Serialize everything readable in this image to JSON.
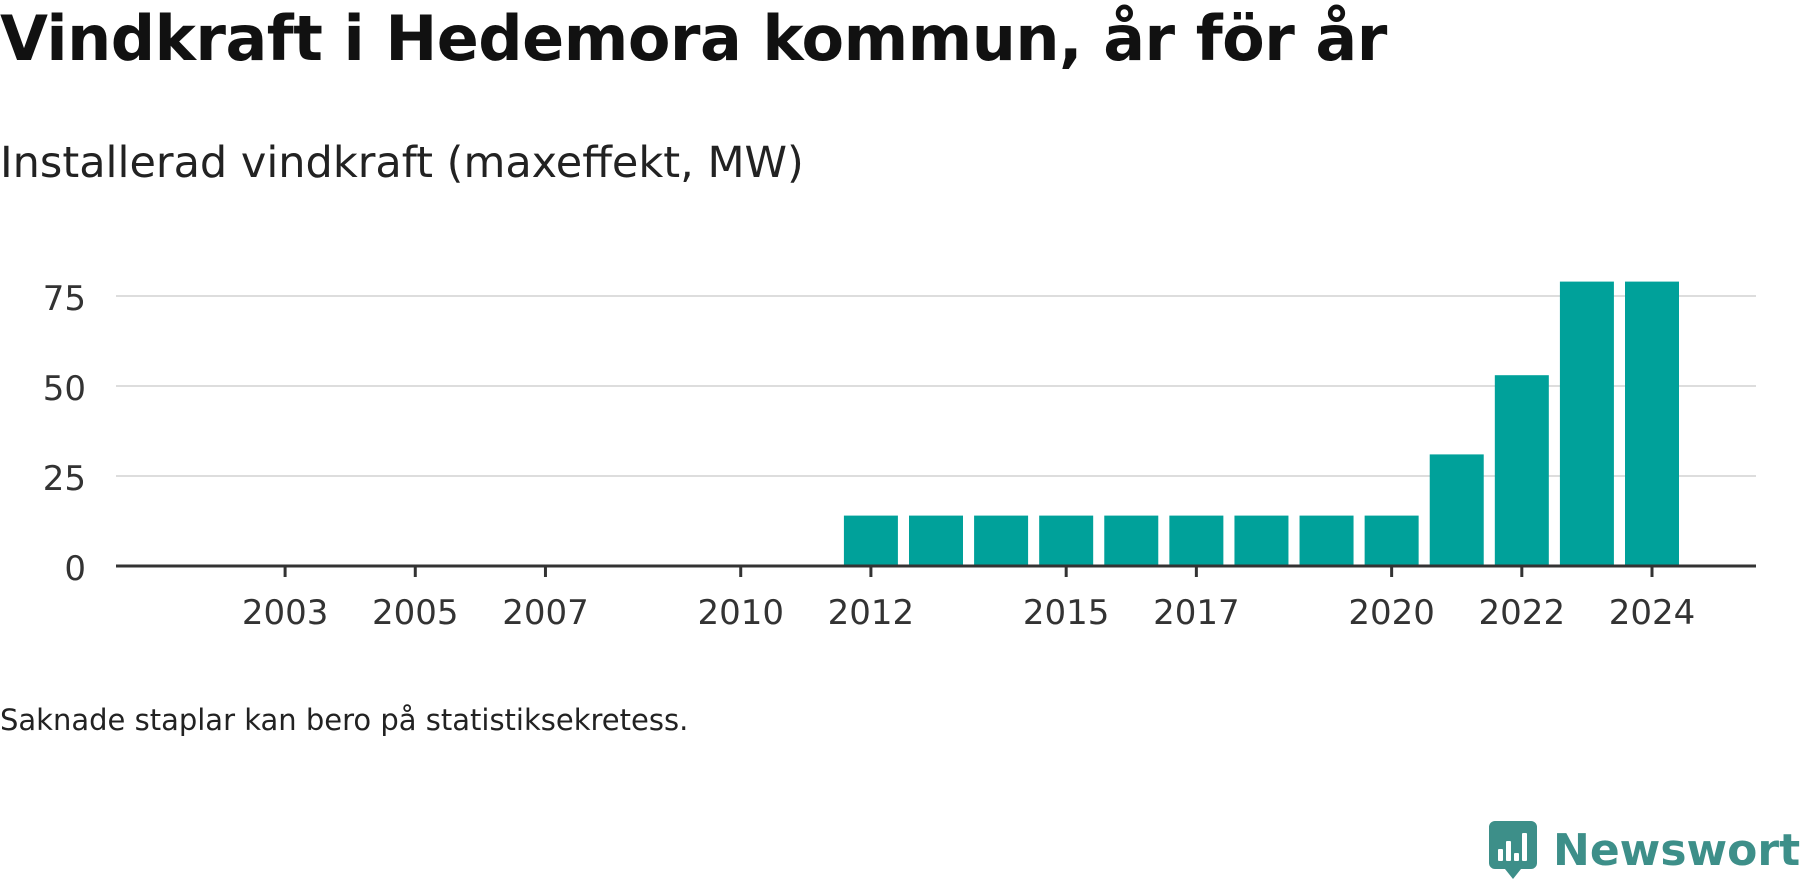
{
  "title": "Vindkraft i Hedemora kommun, år för år",
  "subtitle": "Installerad vindkraft (maxeffekt, MW)",
  "note": "Saknade staplar kan bero på statistiksekretess.",
  "brand": {
    "name": "Newsworthy",
    "icon": "newsworthy-logo-icon",
    "color": "#3d8f89"
  },
  "chart_data": {
    "type": "bar",
    "title": "Installerad vindkraft (maxeffekt, MW)",
    "xlabel": "",
    "ylabel": "",
    "x": [
      2002,
      2003,
      2004,
      2005,
      2006,
      2007,
      2008,
      2009,
      2010,
      2011,
      2012,
      2013,
      2014,
      2015,
      2016,
      2017,
      2018,
      2019,
      2020,
      2021,
      2022,
      2023,
      2024
    ],
    "values": [
      0,
      0,
      0,
      0,
      0,
      0,
      0,
      0,
      0,
      0,
      14,
      14,
      14,
      14,
      14,
      14,
      14,
      14,
      14,
      31,
      53,
      79,
      79
    ],
    "x_ticks": [
      2003,
      2005,
      2007,
      2010,
      2012,
      2015,
      2017,
      2020,
      2022,
      2024
    ],
    "y_ticks": [
      0,
      25,
      50,
      75
    ],
    "ylim": [
      0,
      80
    ],
    "grid": true,
    "legend": "none",
    "bar_color": "#00a19a"
  }
}
